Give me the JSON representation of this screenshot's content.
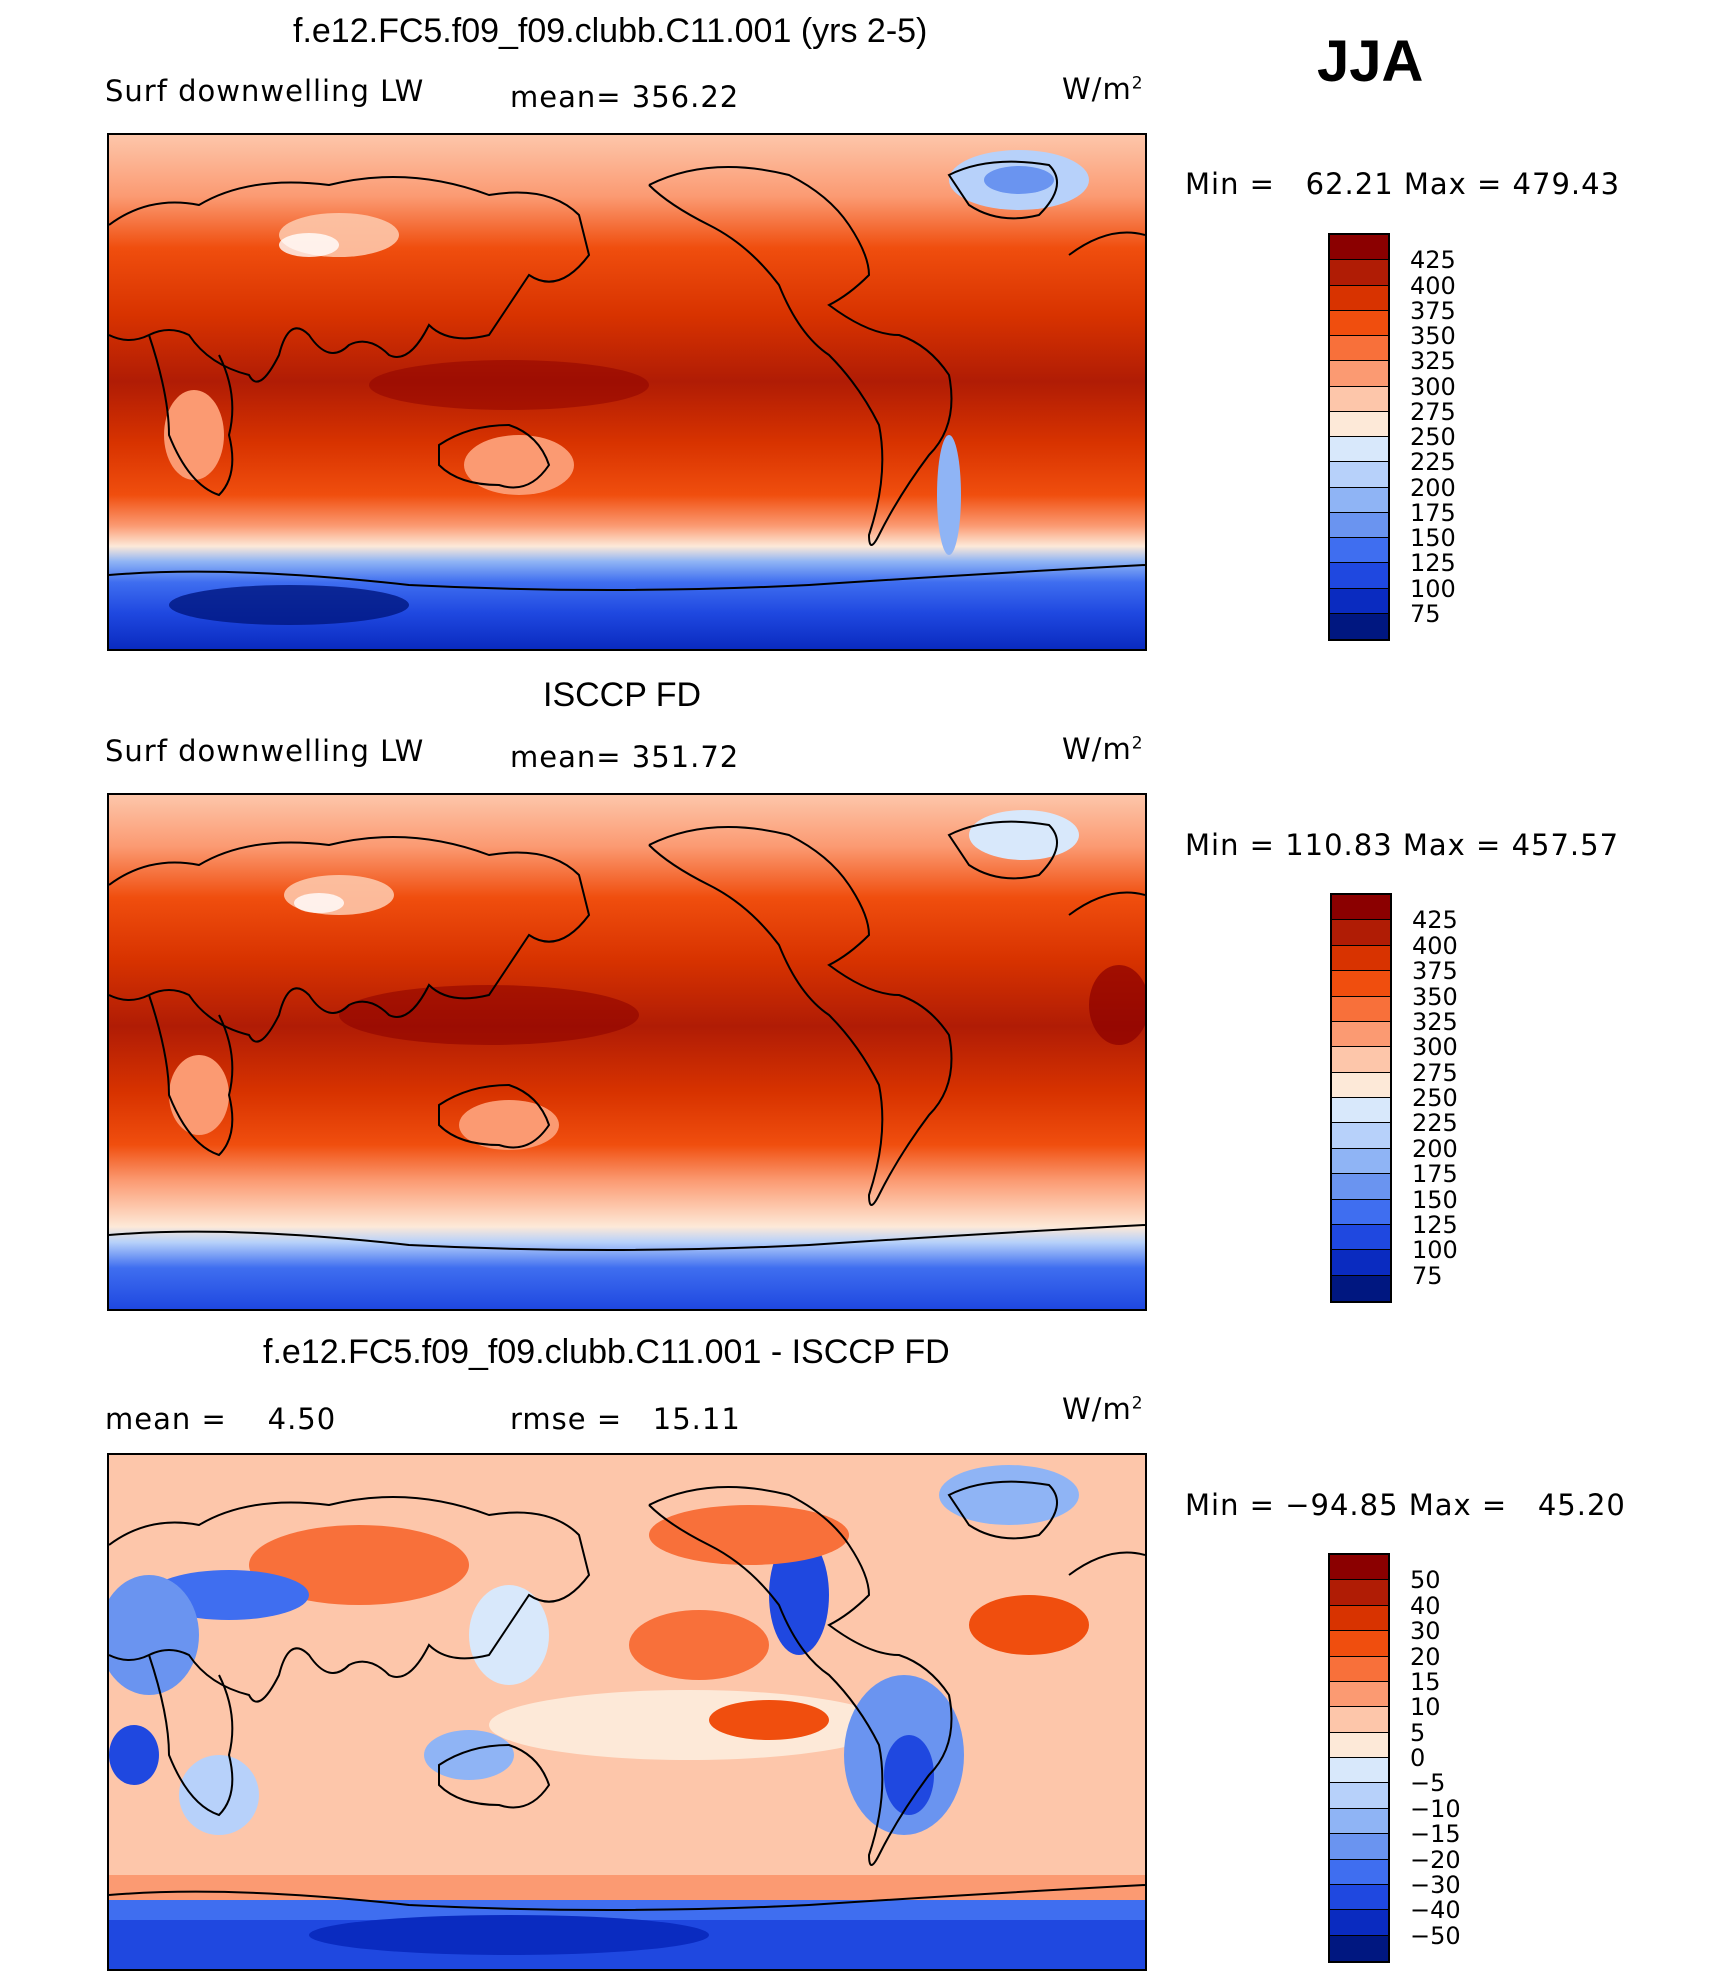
{
  "season": "JJA",
  "panels": [
    {
      "title": "f.e12.FC5.f09_f09.clubb.C11.001 (yrs 2-5)",
      "left_label": "Surf downwelling LW",
      "mid_label": "mean= 356.22",
      "unit": "W/m",
      "unit_sup": "2",
      "minmax": "Min =   62.21 Max = 479.43"
    },
    {
      "title": "ISCCP FD",
      "left_label": "Surf downwelling LW",
      "mid_label": "mean= 351.72",
      "unit": "W/m",
      "unit_sup": "2",
      "minmax": "Min = 110.83 Max = 457.57"
    },
    {
      "title": "f.e12.FC5.f09_f09.clubb.C11.001 - ISCCP FD",
      "left_label": "mean =    4.50",
      "mid_label": "rmse =   15.11",
      "unit": "W/m",
      "unit_sup": "2",
      "minmax": "Min = −94.85 Max =   45.20"
    }
  ],
  "colorbars": {
    "absolute": {
      "labels": [
        "425",
        "400",
        "375",
        "350",
        "325",
        "300",
        "275",
        "250",
        "225",
        "200",
        "175",
        "150",
        "125",
        "100",
        "75"
      ],
      "colors": [
        "#8b0000",
        "#b01c05",
        "#d83300",
        "#f04e0e",
        "#f8703a",
        "#fb9a72",
        "#fdc6aa",
        "#fde9d8",
        "#d8e8fb",
        "#b7d1fa",
        "#8fb4f5",
        "#6a94f0",
        "#3f6ef0",
        "#1f48e0",
        "#0a2bc0",
        "#001780"
      ]
    },
    "difference": {
      "labels": [
        "50",
        "40",
        "30",
        "20",
        "15",
        "10",
        "5",
        "0",
        "−5",
        "−10",
        "−15",
        "−20",
        "−30",
        "−40",
        "−50"
      ],
      "colors": [
        "#8b0000",
        "#b01c05",
        "#d83300",
        "#f04e0e",
        "#f8703a",
        "#fb9a72",
        "#fdc6aa",
        "#fde9d8",
        "#d8e8fb",
        "#b7d1fa",
        "#8fb4f5",
        "#6a94f0",
        "#3f6ef0",
        "#1f48e0",
        "#0a2bc0",
        "#001780"
      ]
    }
  }
}
